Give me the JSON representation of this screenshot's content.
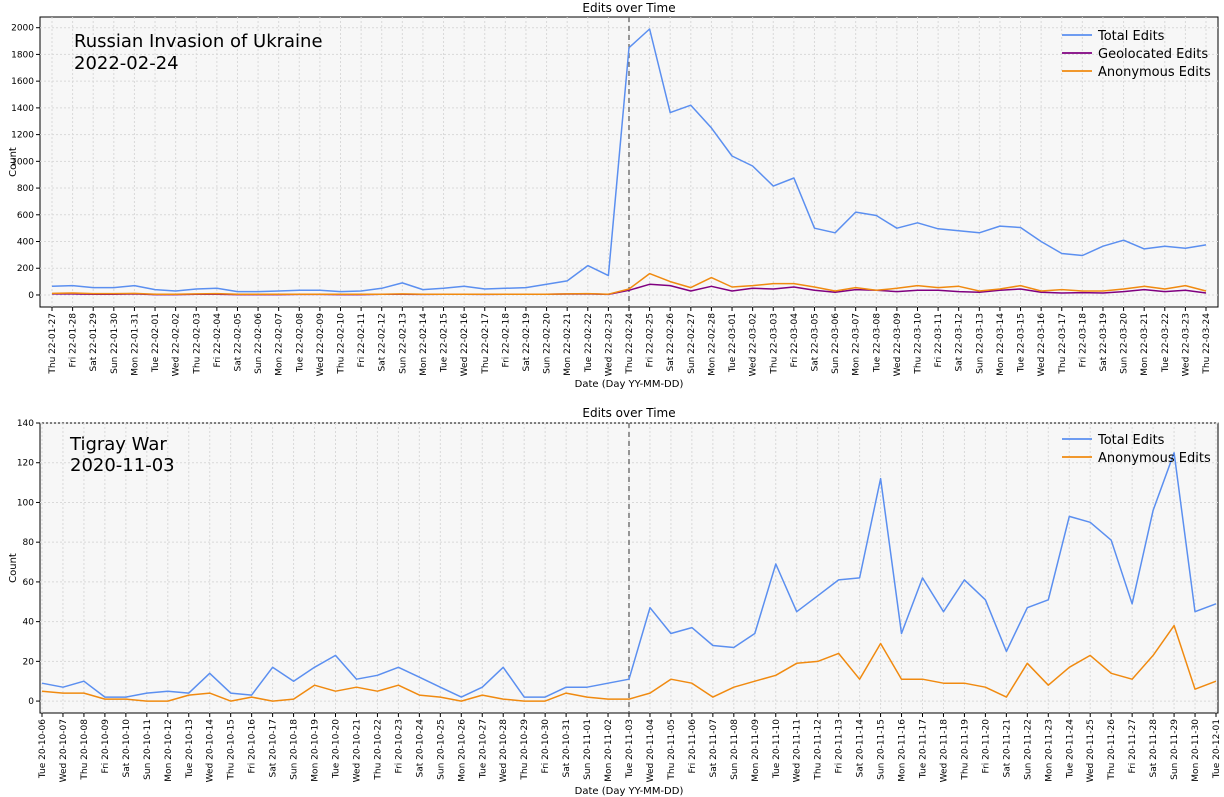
{
  "chart_data": [
    {
      "type": "line",
      "title": "Edits over Time",
      "xlabel": "Date (Day YY-MM-DD)",
      "ylabel": "Count",
      "ylim": [
        -90,
        2080
      ],
      "yticks": [
        0,
        200,
        400,
        600,
        800,
        1000,
        1200,
        1400,
        1600,
        1800,
        2000
      ],
      "annotation": [
        "Russian Invasion of Ukraine",
        "2022-02-24"
      ],
      "event_index": 28,
      "legend_position": "top-right",
      "grid": true,
      "categories": [
        "Thu 22-01-27",
        "Fri 22-01-28",
        "Sat 22-01-29",
        "Sun 22-01-30",
        "Mon 22-01-31",
        "Tue 22-02-01",
        "Wed 22-02-02",
        "Thu 22-02-03",
        "Fri 22-02-04",
        "Sat 22-02-05",
        "Sun 22-02-06",
        "Mon 22-02-07",
        "Tue 22-02-08",
        "Wed 22-02-09",
        "Thu 22-02-10",
        "Fri 22-02-11",
        "Sat 22-02-12",
        "Sun 22-02-13",
        "Mon 22-02-14",
        "Tue 22-02-15",
        "Wed 22-02-16",
        "Thu 22-02-17",
        "Fri 22-02-18",
        "Sat 22-02-19",
        "Sun 22-02-20",
        "Mon 22-02-21",
        "Tue 22-02-22",
        "Wed 22-02-23",
        "Thu 22-02-24",
        "Fri 22-02-25",
        "Sat 22-02-26",
        "Sun 22-02-27",
        "Mon 22-02-28",
        "Tue 22-03-01",
        "Wed 22-03-02",
        "Thu 22-03-03",
        "Fri 22-03-04",
        "Sat 22-03-05",
        "Sun 22-03-06",
        "Mon 22-03-07",
        "Tue 22-03-08",
        "Wed 22-03-09",
        "Thu 22-03-10",
        "Fri 22-03-11",
        "Sat 22-03-12",
        "Sun 22-03-13",
        "Mon 22-03-14",
        "Tue 22-03-15",
        "Wed 22-03-16",
        "Thu 22-03-17",
        "Fri 22-03-18",
        "Sat 22-03-19",
        "Sun 22-03-20",
        "Mon 22-03-21",
        "Tue 22-03-22",
        "Wed 22-03-23",
        "Thu 22-03-24"
      ],
      "series": [
        {
          "name": "Total Edits",
          "color": "#5b8ff0",
          "values": [
            65,
            70,
            55,
            55,
            70,
            40,
            30,
            45,
            50,
            25,
            25,
            30,
            35,
            35,
            25,
            30,
            50,
            90,
            40,
            50,
            65,
            45,
            50,
            55,
            80,
            105,
            220,
            145,
            1850,
            1990,
            1365,
            1420,
            1250,
            1040,
            965,
            815,
            875,
            500,
            465,
            620,
            595,
            500,
            540,
            495,
            480,
            465,
            515,
            505,
            400,
            310,
            295,
            365,
            410,
            345,
            365,
            350,
            375
          ]
        },
        {
          "name": "Geolocated Edits",
          "color": "#800080",
          "values": [
            8,
            8,
            5,
            5,
            8,
            3,
            3,
            5,
            6,
            3,
            3,
            3,
            4,
            4,
            3,
            3,
            5,
            6,
            4,
            5,
            6,
            4,
            5,
            5,
            6,
            7,
            8,
            4,
            35,
            80,
            70,
            30,
            65,
            30,
            50,
            45,
            60,
            35,
            20,
            40,
            35,
            25,
            35,
            35,
            25,
            20,
            35,
            45,
            20,
            15,
            18,
            15,
            25,
            40,
            25,
            35,
            15
          ]
        },
        {
          "name": "Anonymous Edits",
          "color": "#f08a10",
          "values": [
            12,
            15,
            10,
            10,
            12,
            5,
            5,
            8,
            10,
            5,
            5,
            5,
            6,
            6,
            5,
            5,
            5,
            8,
            5,
            6,
            6,
            5,
            6,
            6,
            6,
            8,
            10,
            6,
            45,
            160,
            100,
            55,
            130,
            60,
            70,
            85,
            85,
            60,
            30,
            55,
            35,
            50,
            70,
            55,
            65,
            30,
            45,
            70,
            30,
            40,
            30,
            30,
            45,
            65,
            45,
            70,
            30
          ]
        }
      ]
    },
    {
      "type": "line",
      "title": "Edits over Time",
      "xlabel": "Date (Day YY-MM-DD)",
      "ylabel": "Count",
      "ylim": [
        -6,
        140
      ],
      "yticks": [
        0,
        20,
        40,
        60,
        80,
        100,
        120,
        140
      ],
      "annotation": [
        "Tigray War",
        "2020-11-03"
      ],
      "event_index": 28,
      "legend_position": "top-right",
      "grid": true,
      "categories": [
        "Tue 20-10-06",
        "Wed 20-10-07",
        "Thu 20-10-08",
        "Fri 20-10-09",
        "Sat 20-10-10",
        "Sun 20-10-11",
        "Mon 20-10-12",
        "Tue 20-10-13",
        "Wed 20-10-14",
        "Thu 20-10-15",
        "Fri 20-10-16",
        "Sat 20-10-17",
        "Sun 20-10-18",
        "Mon 20-10-19",
        "Tue 20-10-20",
        "Wed 20-10-21",
        "Thu 20-10-22",
        "Fri 20-10-23",
        "Sat 20-10-24",
        "Sun 20-10-25",
        "Mon 20-10-26",
        "Tue 20-10-27",
        "Wed 20-10-28",
        "Thu 20-10-29",
        "Fri 20-10-30",
        "Sat 20-10-31",
        "Sun 20-11-01",
        "Mon 20-11-02",
        "Tue 20-11-03",
        "Wed 20-11-04",
        "Thu 20-11-05",
        "Fri 20-11-06",
        "Sat 20-11-07",
        "Sun 20-11-08",
        "Mon 20-11-09",
        "Tue 20-11-10",
        "Wed 20-11-11",
        "Thu 20-11-12",
        "Fri 20-11-13",
        "Sat 20-11-14",
        "Sun 20-11-15",
        "Mon 20-11-16",
        "Tue 20-11-17",
        "Wed 20-11-18",
        "Thu 20-11-19",
        "Fri 20-11-20",
        "Sat 20-11-21",
        "Sun 20-11-22",
        "Mon 20-11-23",
        "Tue 20-11-24",
        "Wed 20-11-25",
        "Thu 20-11-26",
        "Fri 20-11-27",
        "Sat 20-11-28",
        "Sun 20-11-29",
        "Mon 20-11-30",
        "Tue 20-12-01"
      ],
      "series": [
        {
          "name": "Total Edits",
          "color": "#5b8ff0",
          "values": [
            9,
            7,
            10,
            2,
            2,
            4,
            5,
            4,
            14,
            4,
            3,
            17,
            10,
            17,
            23,
            11,
            13,
            17,
            12,
            7,
            2,
            7,
            17,
            2,
            2,
            7,
            7,
            9,
            11,
            47,
            34,
            37,
            28,
            27,
            34,
            69,
            45,
            53,
            61,
            62,
            112,
            34,
            62,
            45,
            61,
            51,
            25,
            47,
            51,
            93,
            90,
            81,
            49,
            96,
            125,
            45,
            49
          ]
        },
        {
          "name": "Anonymous Edits",
          "color": "#f08a10",
          "values": [
            5,
            4,
            4,
            1,
            1,
            0,
            0,
            3,
            4,
            0,
            2,
            0,
            1,
            8,
            5,
            7,
            5,
            8,
            3,
            2,
            0,
            3,
            1,
            0,
            0,
            4,
            2,
            1,
            1,
            4,
            11,
            9,
            2,
            7,
            10,
            13,
            19,
            20,
            24,
            11,
            29,
            11,
            11,
            9,
            9,
            7,
            2,
            19,
            8,
            17,
            23,
            14,
            11,
            23,
            38,
            6,
            10
          ]
        }
      ]
    }
  ]
}
